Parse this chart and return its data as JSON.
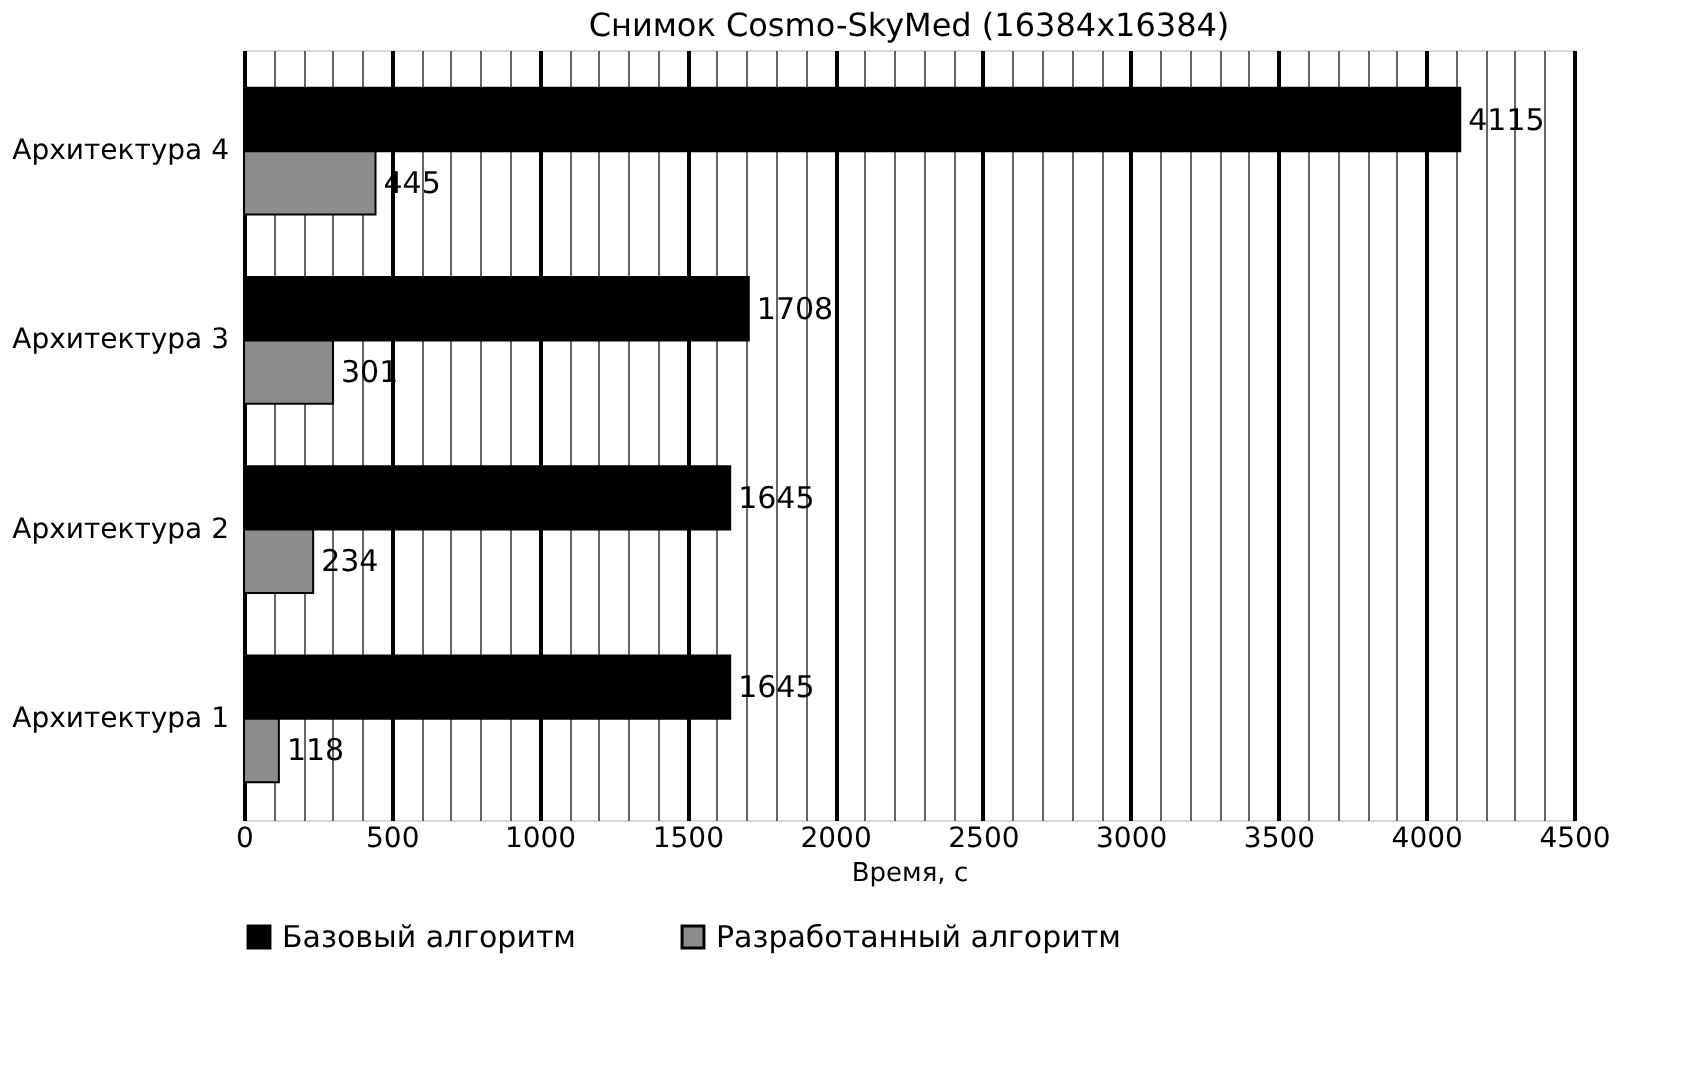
{
  "chart_data": {
    "type": "bar",
    "orientation": "horizontal",
    "title": "Снимок Cosmo-SkyMed (16384x16384)",
    "xlabel": "Время, с",
    "categories": [
      "Архитектура 4",
      "Архитектура 3",
      "Архитектура 2",
      "Архитектура 1"
    ],
    "series": [
      {
        "name": "Базовый алгоритм",
        "color": "#000000",
        "values": [
          4115,
          1708,
          1645,
          1645
        ]
      },
      {
        "name": "Разработанный алгоритм",
        "color": "#8c8c8c",
        "values": [
          445,
          301,
          234,
          118
        ]
      }
    ],
    "xlim": [
      0,
      4500
    ],
    "xticks": [
      0,
      {
        "value": 100,
        "label": null
      },
      {
        "value": 200,
        "label": null
      },
      {
        "value": 300,
        "label": null
      },
      {
        "value": 400,
        "label": null
      },
      500,
      {
        "value": 600,
        "label": null
      },
      {
        "value": 700,
        "label": null
      },
      {
        "value": 800,
        "label": null
      },
      {
        "value": 900,
        "label": null
      },
      1000,
      {
        "value": 1100,
        "label": null
      },
      {
        "value": 1200,
        "label": null
      },
      {
        "value": 1300,
        "label": null
      },
      {
        "value": 1400,
        "label": null
      },
      1500,
      {
        "value": 1600,
        "label": null
      },
      {
        "value": 1700,
        "label": null
      },
      {
        "value": 1800,
        "label": null
      },
      {
        "value": 1900,
        "label": null
      },
      2000,
      {
        "value": 2100,
        "label": null
      },
      {
        "value": 2200,
        "label": null
      },
      {
        "value": 2300,
        "label": null
      },
      {
        "value": 2400,
        "label": null
      },
      2500,
      {
        "value": 2600,
        "label": null
      },
      {
        "value": 2700,
        "label": null
      },
      {
        "value": 2800,
        "label": null
      },
      {
        "value": 2900,
        "label": null
      },
      3000,
      {
        "value": 3100,
        "label": null
      },
      {
        "value": 3200,
        "label": null
      },
      {
        "value": 3300,
        "label": null
      },
      {
        "value": 3400,
        "label": null
      },
      3500,
      {
        "value": 3600,
        "label": null
      },
      {
        "value": 3700,
        "label": null
      },
      {
        "value": 3800,
        "label": null
      },
      {
        "value": 3900,
        "label": null
      },
      4000,
      {
        "value": 4100,
        "label": null
      },
      {
        "value": 4200,
        "label": null
      },
      {
        "value": 4300,
        "label": null
      },
      {
        "value": 4400,
        "label": null
      },
      4500
    ],
    "grid": "x",
    "legend": "bottom",
    "data_labels": true
  }
}
